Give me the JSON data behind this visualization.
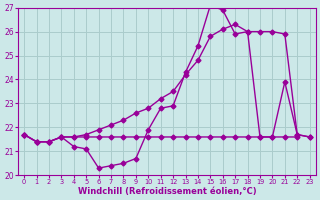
{
  "x": [
    0,
    1,
    2,
    3,
    4,
    5,
    6,
    7,
    8,
    9,
    10,
    11,
    12,
    13,
    14,
    15,
    16,
    17,
    18,
    19,
    20,
    21,
    22,
    23
  ],
  "line_temp": [
    21.7,
    21.4,
    21.4,
    21.6,
    21.2,
    21.1,
    20.3,
    20.4,
    20.5,
    20.7,
    21.9,
    22.8,
    22.9,
    24.3,
    25.4,
    27.1,
    26.9,
    25.9,
    26.0,
    21.6,
    21.6,
    23.9,
    21.7,
    21.6
  ],
  "line_upper": [
    21.7,
    21.4,
    21.4,
    21.6,
    21.6,
    21.7,
    21.9,
    22.1,
    22.3,
    22.6,
    22.8,
    23.2,
    23.5,
    24.2,
    24.8,
    25.8,
    26.1,
    26.3,
    26.0,
    26.0,
    26.0,
    25.9,
    21.7,
    21.6
  ],
  "line_flat": [
    21.7,
    21.4,
    21.4,
    21.6,
    21.6,
    21.6,
    21.6,
    21.6,
    21.6,
    21.6,
    21.6,
    21.6,
    21.6,
    21.6,
    21.6,
    21.6,
    21.6,
    21.6,
    21.6,
    21.6,
    21.6,
    21.6,
    21.6
  ],
  "x_flat": [
    0,
    1,
    2,
    3,
    4,
    5,
    6,
    7,
    8,
    9,
    10,
    11,
    12,
    13,
    14,
    15,
    16,
    17,
    18,
    19,
    20,
    21,
    22
  ],
  "line_color": "#990099",
  "bg_color": "#cce8e8",
  "grid_color": "#aacccc",
  "ylim": [
    20,
    27
  ],
  "xlim_min": -0.5,
  "xlim_max": 23.5,
  "xlabel": "Windchill (Refroidissement éolien,°C)",
  "yticks": [
    20,
    21,
    22,
    23,
    24,
    25,
    26,
    27
  ],
  "xticks": [
    0,
    1,
    2,
    3,
    4,
    5,
    6,
    7,
    8,
    9,
    10,
    11,
    12,
    13,
    14,
    15,
    16,
    17,
    18,
    19,
    20,
    21,
    22,
    23
  ]
}
